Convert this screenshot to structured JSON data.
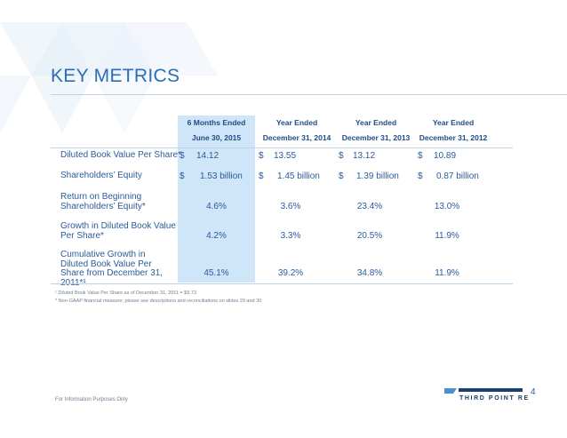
{
  "page": {
    "title": "KEY METRICS",
    "page_number": "4",
    "footer_info": "For Information Purposes Only",
    "brand": "THIRD POINT RE"
  },
  "table": {
    "columns": [
      {
        "line1": "6 Months Ended",
        "line2": "June 30, 2015"
      },
      {
        "line1": "Year Ended",
        "line2": "December 31, 2014"
      },
      {
        "line1": "Year Ended",
        "line2": "December 31, 2013"
      },
      {
        "line1": "Year Ended",
        "line2": "December 31, 2012"
      }
    ],
    "rows": [
      {
        "label": "Diluted Book Value Per Share*",
        "currency": "$",
        "values": [
          "14.12",
          "13.55",
          "13.12",
          "10.89"
        ]
      },
      {
        "label": "Shareholders’ Equity",
        "currency": "$",
        "values": [
          "1.53 billion",
          "1.45 billion",
          "1.39 billion",
          "0.87 billion"
        ]
      },
      {
        "label": "Return on Beginning Shareholders’ Equity*",
        "values": [
          "4.6%",
          "3.6%",
          "23.4%",
          "13.0%"
        ]
      },
      {
        "label": "Growth in Diluted Book Value Per Share*",
        "values": [
          "4.2%",
          "3.3%",
          "20.5%",
          "11.9%"
        ]
      },
      {
        "label": "Cumulative Growth in Diluted Book Value Per Share from December 31, 2011*¹",
        "values": [
          "45.1%",
          "39.2%",
          "34.8%",
          "11.9%"
        ]
      }
    ]
  },
  "footnotes": [
    "¹ Diluted Book Value Per Share as of December 31, 2011 = $9.73",
    "* Non-GAAP financial measure; please see descriptions and reconciliations on slides 29 and 30"
  ],
  "colors": {
    "accent": "#2a6fb5",
    "highlight": "#cfe5f8",
    "header_text": "#1f4c86"
  }
}
